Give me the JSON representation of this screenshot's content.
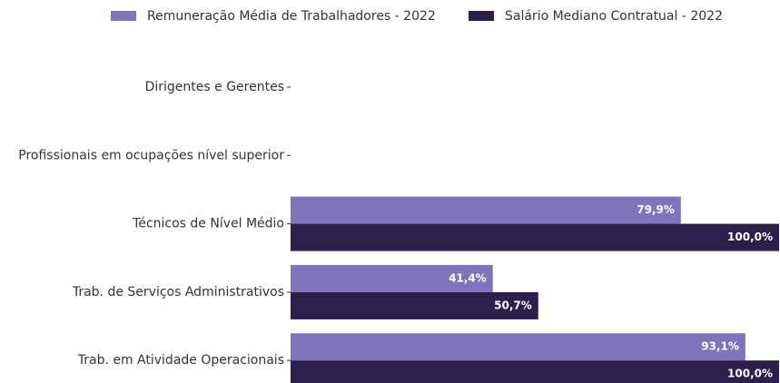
{
  "chart_data": {
    "type": "barh",
    "categories": [
      "Dirigentes e Gerentes",
      "Profissionais em ocupações nível superior",
      "Técnicos de Nível Médio",
      "Trab. de Serviços Administrativos",
      "Trab. em Atividade Operacionais"
    ],
    "series": [
      {
        "name": "Remuneração Média de Trabalhadores - 2022",
        "color": "#8075bd",
        "values": [
          null,
          null,
          79.9,
          41.4,
          93.1
        ],
        "value_labels": [
          null,
          null,
          "79,9%",
          "41,4%",
          "93,1%"
        ]
      },
      {
        "name": "Salário Mediano Contratual - 2022",
        "color": "#2c1f4b",
        "values": [
          null,
          null,
          100,
          50.7,
          100
        ],
        "value_labels": [
          null,
          null,
          "100,0%",
          "50,7%",
          "100,0%"
        ]
      }
    ],
    "xlim": [
      0,
      100
    ],
    "legend": "top"
  }
}
